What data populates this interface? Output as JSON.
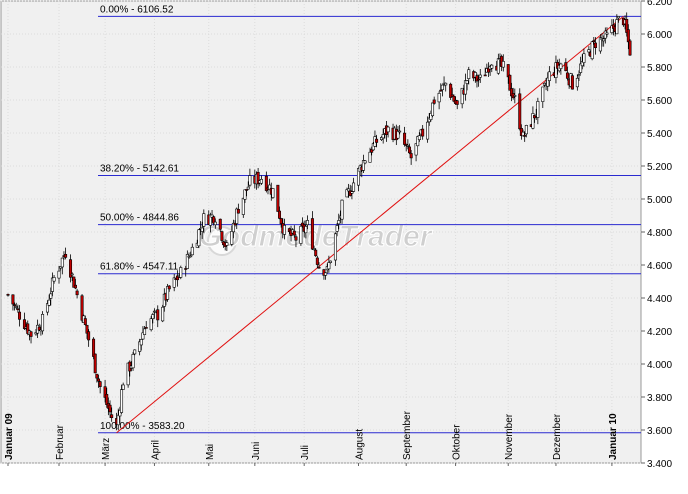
{
  "chart_data": {
    "type": "candlestick",
    "title": "",
    "xlabel": "",
    "ylabel": "",
    "ylim": [
      3400,
      6200
    ],
    "y_ticks": [
      "3.400",
      "3.600",
      "3.800",
      "4.000",
      "4.200",
      "4.400",
      "4.600",
      "4.800",
      "5.000",
      "5.200",
      "5.400",
      "5.600",
      "5.800",
      "6.000",
      "6.200"
    ],
    "y_tick_values": [
      3400,
      3600,
      3800,
      4000,
      4200,
      4400,
      4600,
      4800,
      5000,
      5200,
      5400,
      5600,
      5800,
      6000,
      6200
    ],
    "x_start": "2009-01-02",
    "x_end": "2010-01-15",
    "months": [
      {
        "label": "Januar 09",
        "date": "2009-01-02",
        "bold": true
      },
      {
        "label": "Februar",
        "date": "2009-02-02",
        "bold": false
      },
      {
        "label": "März",
        "date": "2009-03-02",
        "bold": false
      },
      {
        "label": "April",
        "date": "2009-04-01",
        "bold": false
      },
      {
        "label": "Mai",
        "date": "2009-05-04",
        "bold": false
      },
      {
        "label": "Juni",
        "date": "2009-06-01",
        "bold": false
      },
      {
        "label": "Juli",
        "date": "2009-07-01",
        "bold": false
      },
      {
        "label": "August",
        "date": "2009-08-03",
        "bold": false
      },
      {
        "label": "September",
        "date": "2009-09-01",
        "bold": false
      },
      {
        "label": "Oktober",
        "date": "2009-10-01",
        "bold": false
      },
      {
        "label": "November",
        "date": "2009-11-02",
        "bold": false
      },
      {
        "label": "Dezember",
        "date": "2009-12-01",
        "bold": false
      },
      {
        "label": "Januar 10",
        "date": "2010-01-04",
        "bold": true
      }
    ],
    "fibonacci_levels": [
      {
        "label": "0.00% - 6106.52",
        "value": 6106.52
      },
      {
        "label": "38.20% - 5142.61",
        "value": 5142.61
      },
      {
        "label": "50.00% - 4844.86",
        "value": 4844.86
      },
      {
        "label": "61.80% - 4547.11",
        "value": 4547.11
      },
      {
        "label": "100.00% - 3583.20",
        "value": 3583.2
      }
    ],
    "trendline": {
      "from": {
        "date": "2009-03-09",
        "value": 3583.2
      },
      "to": {
        "date": "2010-01-11",
        "value": 6106.52
      }
    },
    "price_path": [
      [
        "2009-01-02",
        4420
      ],
      [
        "2009-01-09",
        4300
      ],
      [
        "2009-01-16",
        4180
      ],
      [
        "2009-01-23",
        4260
      ],
      [
        "2009-01-30",
        4520
      ],
      [
        "2009-02-06",
        4680
      ],
      [
        "2009-02-13",
        4420
      ],
      [
        "2009-02-20",
        4150
      ],
      [
        "2009-02-27",
        3860
      ],
      [
        "2009-03-06",
        3680
      ],
      [
        "2009-03-09",
        3620
      ],
      [
        "2009-03-13",
        3900
      ],
      [
        "2009-03-20",
        4050
      ],
      [
        "2009-03-27",
        4250
      ],
      [
        "2009-04-03",
        4300
      ],
      [
        "2009-04-10",
        4450
      ],
      [
        "2009-04-17",
        4550
      ],
      [
        "2009-04-24",
        4700
      ],
      [
        "2009-05-01",
        4880
      ],
      [
        "2009-05-08",
        4900
      ],
      [
        "2009-05-15",
        4700
      ],
      [
        "2009-05-22",
        4950
      ],
      [
        "2009-05-29",
        5100
      ],
      [
        "2009-06-05",
        5130
      ],
      [
        "2009-06-12",
        5050
      ],
      [
        "2009-06-19",
        4800
      ],
      [
        "2009-06-26",
        4760
      ],
      [
        "2009-07-03",
        4840
      ],
      [
        "2009-07-10",
        4600
      ],
      [
        "2009-07-15",
        4560
      ],
      [
        "2009-07-24",
        4950
      ],
      [
        "2009-07-31",
        5100
      ],
      [
        "2009-08-07",
        5250
      ],
      [
        "2009-08-14",
        5350
      ],
      [
        "2009-08-21",
        5420
      ],
      [
        "2009-08-28",
        5380
      ],
      [
        "2009-09-04",
        5250
      ],
      [
        "2009-09-11",
        5400
      ],
      [
        "2009-09-18",
        5600
      ],
      [
        "2009-09-25",
        5700
      ],
      [
        "2009-10-02",
        5560
      ],
      [
        "2009-10-09",
        5750
      ],
      [
        "2009-10-16",
        5720
      ],
      [
        "2009-10-23",
        5850
      ],
      [
        "2009-10-30",
        5790
      ],
      [
        "2009-11-06",
        5600
      ],
      [
        "2009-11-11",
        5370
      ],
      [
        "2009-11-20",
        5550
      ],
      [
        "2009-11-27",
        5750
      ],
      [
        "2009-12-04",
        5820
      ],
      [
        "2009-12-11",
        5700
      ],
      [
        "2009-12-18",
        5840
      ],
      [
        "2009-12-25",
        5950
      ],
      [
        "2010-01-01",
        5980
      ],
      [
        "2010-01-08",
        6080
      ],
      [
        "2010-01-11",
        6090
      ],
      [
        "2010-01-15",
        5900
      ]
    ],
    "grid": true,
    "watermark": "GodmodeTrader",
    "colors": {
      "plot_bg": "#f0f0f0",
      "fib_line": "#2a2ad0",
      "trend_line": "#e01010",
      "candle_up": "#ffffff",
      "candle_down": "#c00000",
      "candle_outline": "#000000",
      "grid": "#dcdcdc"
    }
  }
}
